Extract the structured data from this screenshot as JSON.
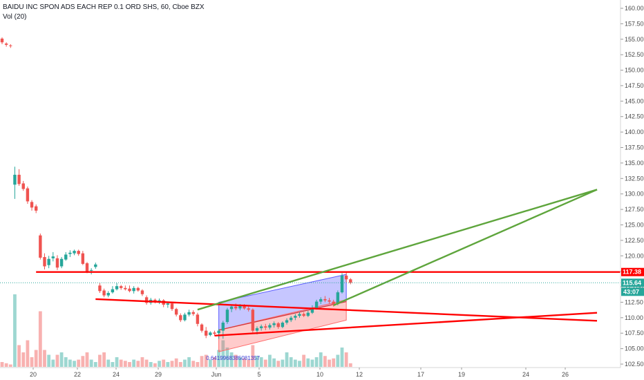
{
  "header": {
    "title": "BAIDU INC SPON ADS EACH REP 0.1 ORD SHS, 60, Cboe BZX",
    "volume_label": "Vol (20)"
  },
  "colors": {
    "up": "#26a69a",
    "down": "#ef5350",
    "hline": "#ff0000",
    "trend_green": "#5ea53c",
    "channel_blue": "#5b5bff",
    "channel_red": "#ff6a6a",
    "price_tag_bg": "#26a69a",
    "level_tag_bg": "#ff0000"
  },
  "chart_data": {
    "type": "candlestick",
    "title": "BAIDU INC SPON ADS EACH REP 0.1 ORD SHS, 60, Cboe BZX",
    "y_ticks": [
      "160.00",
      "157.50",
      "155.00",
      "152.50",
      "150.00",
      "147.50",
      "145.00",
      "142.50",
      "140.00",
      "137.50",
      "135.00",
      "132.50",
      "130.00",
      "127.50",
      "125.00",
      "122.50",
      "120.00",
      "117.50",
      "115.00",
      "112.50",
      "110.00",
      "107.50",
      "105.00",
      "102.50"
    ],
    "y_range": [
      101.8,
      160.5
    ],
    "x_ticks": [
      "20",
      "22",
      "24",
      "29",
      "Jun",
      "5",
      "10",
      "12",
      "17",
      "19",
      "24",
      "26"
    ],
    "last_price": "115.64",
    "countdown": "43:07",
    "level_price": "117.38",
    "annotation_text": "0.6419968385081357",
    "candles": [
      [
        0,
        155.1,
        155.3,
        154.2,
        154.5
      ],
      [
        1,
        154.3,
        154.5,
        153.8,
        154.1
      ],
      [
        2,
        154.0,
        154.2,
        153.6,
        153.9
      ],
      [
        3,
        131.5,
        134.4,
        129.2,
        133.1
      ],
      [
        4,
        133.1,
        134.0,
        131.3,
        131.6
      ],
      [
        5,
        131.7,
        132.1,
        130.5,
        130.8
      ],
      [
        6,
        130.9,
        131.2,
        128.4,
        128.8
      ],
      [
        7,
        128.7,
        129.0,
        127.3,
        127.8
      ],
      [
        8,
        128.0,
        128.3,
        126.9,
        127.3
      ],
      [
        9,
        123.3,
        123.6,
        119.4,
        119.7
      ],
      [
        10,
        119.8,
        120.4,
        117.8,
        118.3
      ],
      [
        11,
        118.5,
        120.0,
        118.0,
        119.5
      ],
      [
        12,
        119.6,
        120.6,
        119.1,
        119.9
      ],
      [
        13,
        119.6,
        120.1,
        117.7,
        118.1
      ],
      [
        14,
        118.3,
        119.8,
        118.0,
        119.5
      ],
      [
        15,
        119.4,
        120.6,
        119.2,
        120.2
      ],
      [
        16,
        120.3,
        120.9,
        119.8,
        120.5
      ],
      [
        17,
        120.4,
        121.0,
        120.1,
        120.8
      ],
      [
        18,
        120.8,
        121.0,
        120.0,
        120.3
      ],
      [
        19,
        120.4,
        120.8,
        118.5,
        118.7
      ],
      [
        20,
        118.8,
        119.0,
        117.2,
        117.5
      ],
      [
        21,
        117.6,
        118.0,
        117.0,
        117.7
      ],
      [
        22,
        118.2,
        118.9,
        117.9,
        118.6
      ],
      [
        23,
        115.2,
        115.6,
        114.0,
        114.3
      ],
      [
        24,
        114.4,
        114.7,
        113.3,
        113.6
      ],
      [
        25,
        113.6,
        114.3,
        113.3,
        114.0
      ],
      [
        26,
        114.1,
        115.1,
        113.9,
        114.6
      ],
      [
        27,
        114.6,
        115.6,
        114.4,
        115.1
      ],
      [
        28,
        115.1,
        115.3,
        114.5,
        114.8
      ],
      [
        29,
        114.8,
        115.2,
        114.4,
        114.6
      ],
      [
        30,
        114.7,
        115.2,
        114.1,
        114.3
      ],
      [
        31,
        114.3,
        115.1,
        113.9,
        114.8
      ],
      [
        32,
        114.8,
        115.0,
        114.2,
        114.4
      ],
      [
        33,
        114.4,
        114.6,
        113.5,
        113.8
      ],
      [
        34,
        113.3,
        113.6,
        112.1,
        112.4
      ],
      [
        35,
        112.4,
        113.2,
        112.1,
        112.9
      ],
      [
        36,
        112.9,
        113.1,
        112.3,
        112.6
      ],
      [
        37,
        112.6,
        113.1,
        112.2,
        112.8
      ],
      [
        38,
        112.8,
        113.0,
        111.7,
        112.1
      ],
      [
        39,
        112.1,
        112.5,
        111.6,
        112.3
      ],
      [
        40,
        112.3,
        112.6,
        111.1,
        111.4
      ],
      [
        41,
        111.4,
        111.6,
        110.2,
        110.5
      ],
      [
        42,
        110.4,
        110.7,
        109.3,
        109.6
      ],
      [
        43,
        109.6,
        110.8,
        109.4,
        110.5
      ],
      [
        44,
        110.5,
        111.3,
        110.2,
        110.9
      ],
      [
        45,
        110.9,
        111.2,
        110.3,
        110.6
      ],
      [
        46,
        110.5,
        110.8,
        108.6,
        109.0
      ],
      [
        47,
        108.9,
        109.1,
        107.6,
        107.9
      ],
      [
        48,
        107.9,
        108.5,
        106.7,
        107.1
      ],
      [
        49,
        107.2,
        107.8,
        107.0,
        107.6
      ],
      [
        50,
        107.6,
        107.9,
        107.1,
        107.4
      ],
      [
        51,
        107.5,
        108.2,
        106.6,
        107.9
      ],
      [
        52,
        107.9,
        109.5,
        106.6,
        109.2
      ],
      [
        53,
        109.3,
        111.6,
        109.0,
        111.3
      ],
      [
        54,
        111.4,
        112.0,
        110.9,
        111.8
      ],
      [
        55,
        111.8,
        112.3,
        111.2,
        111.5
      ],
      [
        56,
        111.5,
        112.2,
        111.2,
        111.9
      ],
      [
        57,
        111.9,
        112.2,
        111.3,
        111.5
      ],
      [
        58,
        111.5,
        111.8,
        111.0,
        111.3
      ],
      [
        59,
        111.3,
        111.5,
        107.6,
        107.9
      ],
      [
        60,
        107.9,
        108.6,
        107.3,
        108.3
      ],
      [
        61,
        108.3,
        108.9,
        107.9,
        108.6
      ],
      [
        62,
        108.6,
        109.0,
        108.0,
        108.4
      ],
      [
        63,
        108.4,
        109.1,
        108.1,
        108.8
      ],
      [
        64,
        108.8,
        109.4,
        108.4,
        109.1
      ],
      [
        65,
        109.1,
        109.3,
        108.2,
        108.5
      ],
      [
        66,
        108.5,
        109.4,
        108.3,
        109.2
      ],
      [
        67,
        109.2,
        109.9,
        108.9,
        109.6
      ],
      [
        68,
        109.6,
        110.3,
        109.3,
        110.0
      ],
      [
        69,
        110.0,
        110.6,
        109.6,
        110.3
      ],
      [
        70,
        110.3,
        110.9,
        110.0,
        110.6
      ],
      [
        71,
        110.6,
        110.9,
        110.1,
        110.3
      ],
      [
        72,
        110.3,
        111.1,
        110.1,
        110.8
      ],
      [
        73,
        110.8,
        112.0,
        110.6,
        111.6
      ],
      [
        74,
        111.6,
        112.9,
        111.3,
        112.6
      ],
      [
        75,
        112.6,
        113.3,
        112.2,
        113.0
      ],
      [
        76,
        113.0,
        113.5,
        112.5,
        112.8
      ],
      [
        77,
        112.8,
        113.2,
        112.3,
        112.6
      ],
      [
        78,
        112.6,
        112.9,
        111.8,
        112.1
      ],
      [
        79,
        112.2,
        114.4,
        112.0,
        114.1
      ],
      [
        80,
        114.1,
        117.2,
        113.9,
        116.8
      ],
      [
        81,
        116.8,
        117.3,
        115.7,
        116.2
      ],
      [
        82,
        116.2,
        116.4,
        115.4,
        115.64
      ]
    ],
    "volumes": [
      4,
      3,
      2,
      60,
      18,
      12,
      22,
      8,
      14,
      46,
      14,
      10,
      6,
      10,
      12,
      8,
      6,
      5,
      6,
      9,
      12,
      6,
      4,
      10,
      12,
      6,
      4,
      8,
      6,
      5,
      4,
      6,
      5,
      8,
      6,
      4,
      3,
      5,
      6,
      4,
      5,
      7,
      4,
      6,
      8,
      5,
      4,
      9,
      10,
      6,
      8,
      14,
      22,
      16,
      12,
      10,
      8,
      7,
      6,
      18,
      9,
      8,
      6,
      10,
      7,
      5,
      6,
      12,
      8,
      6,
      5,
      10,
      7,
      6,
      8,
      12,
      9,
      6,
      7,
      10,
      16,
      12,
      3
    ],
    "volume_scale_max": 60,
    "drawings": {
      "horizontal_level": 117.38,
      "red_line_1": [
        [
          22,
          113.0
        ],
        [
          140,
          109.5
        ]
      ],
      "red_line_2": [
        [
          50,
          107.1
        ],
        [
          140,
          110.8
        ]
      ],
      "green_line_1": [
        [
          46,
          111.3
        ],
        [
          140,
          130.7
        ]
      ],
      "green_line_2": [
        [
          78,
          112.0
        ],
        [
          140,
          130.7
        ]
      ],
      "blue_channel": {
        "x": [
          51,
          81
        ],
        "upper": [
          112.5,
          117.0
        ],
        "lower": [
          108.0,
          112.6
        ]
      },
      "red_channel": {
        "x": [
          51,
          81
        ],
        "upper": [
          108.0,
          112.9
        ],
        "lower": [
          104.5,
          109.6
        ]
      }
    }
  }
}
